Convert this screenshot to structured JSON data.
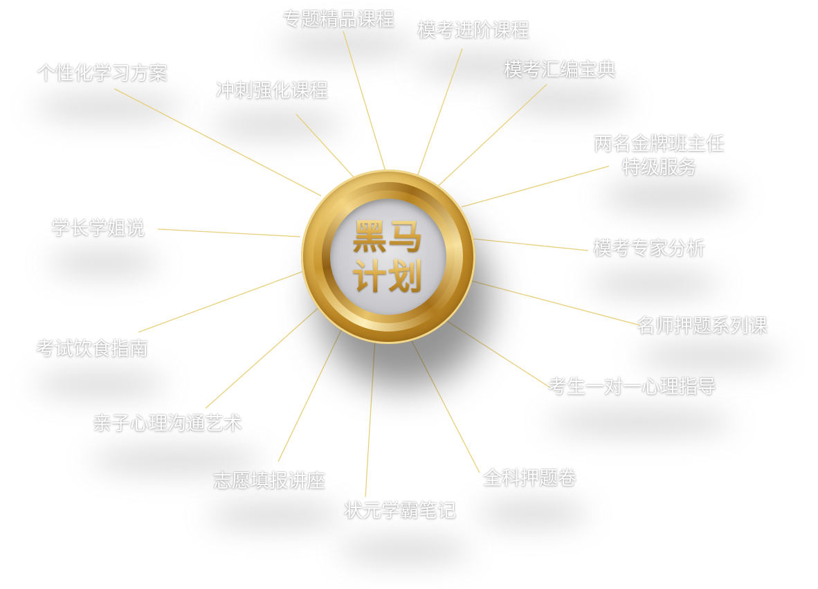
{
  "center": {
    "line1": "黑马",
    "line2": "计划"
  },
  "colors": {
    "connector": "#e8cf7a",
    "label_text": "#ffffff",
    "gold": "#d8a640"
  },
  "nodes": {
    "n01": "专题精品课程",
    "n02": "模考进阶课程",
    "n03": "模考汇编宝典",
    "n04_line1": "两名金牌班主任",
    "n04_line2": "特级服务",
    "n05": "模考专家分析",
    "n06": "名师押题系列课",
    "n07": "考生一对一心理指导",
    "n08": "全科押题卷",
    "n09": "状元学霸笔记",
    "n10": "志愿填报讲座",
    "n11": "亲子心理沟通艺术",
    "n12": "考试饮食指南",
    "n13": "学长学姐说",
    "n14": "个性化学习方案",
    "n15": "冲刺强化课程"
  }
}
